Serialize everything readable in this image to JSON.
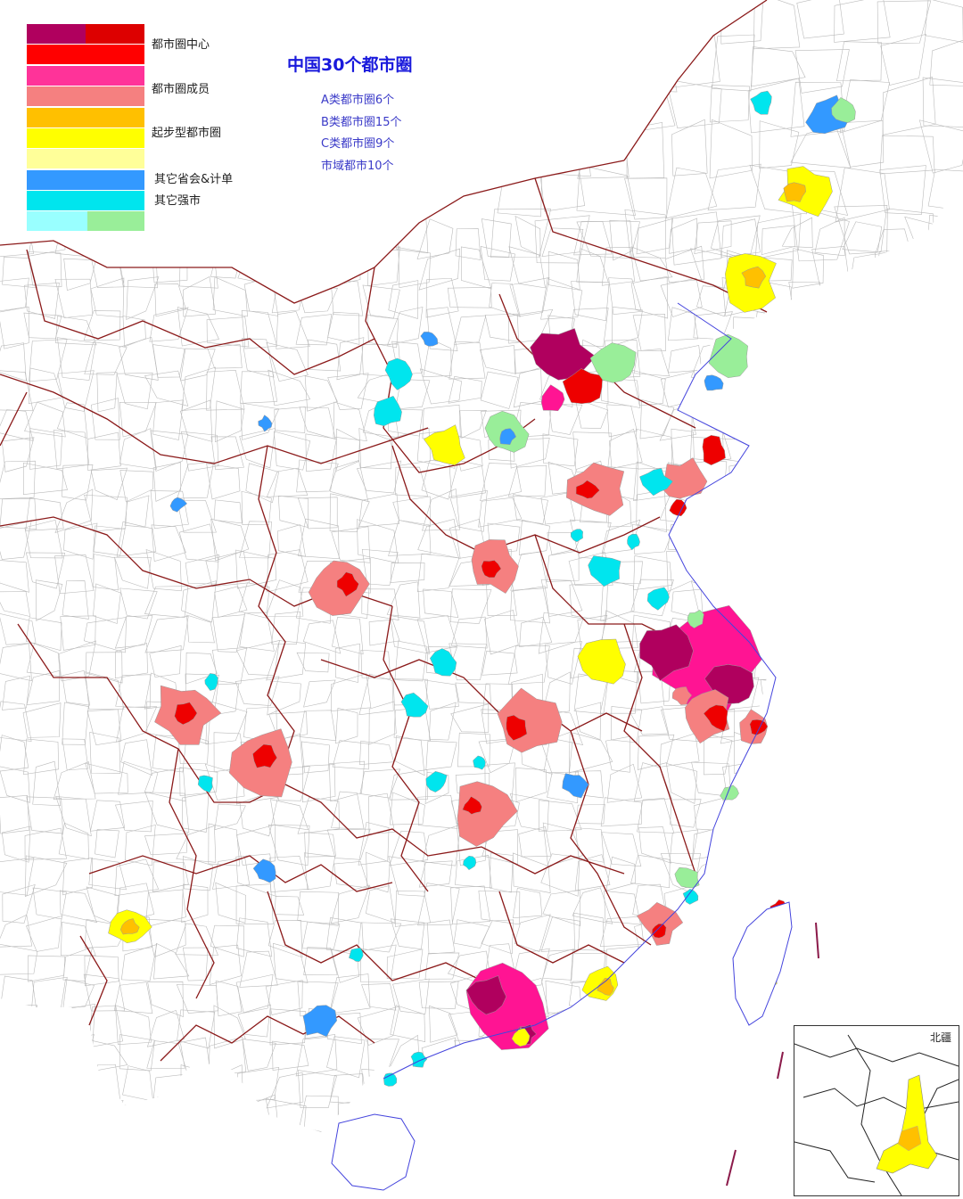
{
  "title": "中国30个都市圈",
  "stats": [
    "A类都市圈6个",
    "B类都市圈15个",
    "C类都市圈9个",
    "市域都市10个"
  ],
  "legend": {
    "items": [
      {
        "label": "都市圈中心",
        "colors": [
          "#b0005e",
          "#ee0000",
          "#ff0000"
        ]
      },
      {
        "label": "都市圈成员",
        "colors": [
          "#ff3399",
          "#f58080"
        ]
      },
      {
        "label": "起步型都市圈",
        "colors": [
          "#ffc000",
          "#ffff00",
          "#ffff99"
        ]
      },
      {
        "label": "其它省会&计单",
        "colors": [
          "#3399ff"
        ]
      },
      {
        "label": "其它强市",
        "colors": [
          "#00e5ee",
          "#99ffff",
          "#99ee99"
        ]
      }
    ]
  },
  "inset": {
    "label": "北疆"
  },
  "colors": {
    "center_dark": "#b0005e",
    "center_red": "#ee0000",
    "member_pink": "#ff1493",
    "member_salmon": "#f58080",
    "starter_orange": "#ffc000",
    "starter_yellow": "#ffff00",
    "capital_blue": "#3399ff",
    "strong_cyan": "#00e5ee",
    "strong_green": "#99ee99",
    "province_border": "#8b1a1a",
    "county_border": "#bbbbbb",
    "coast": "#4444dd"
  }
}
